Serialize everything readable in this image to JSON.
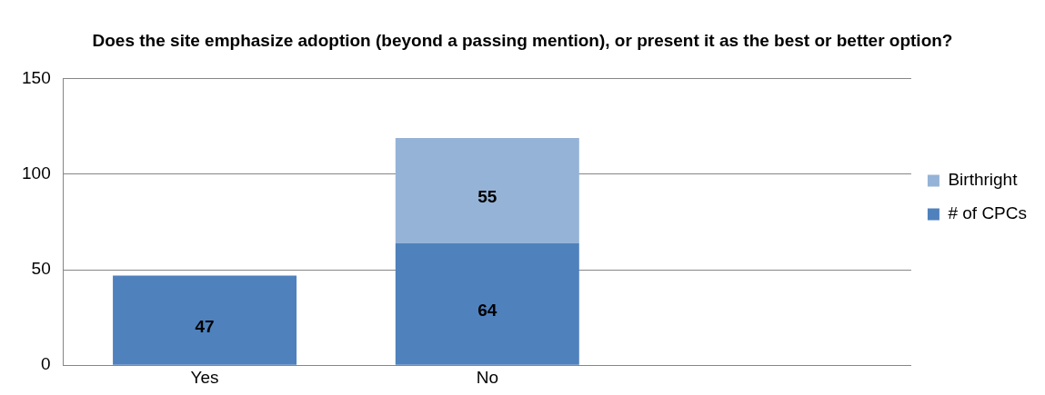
{
  "chart_data": {
    "type": "bar",
    "title": "Does the site emphasize adoption (beyond a passing mention), or present it as the best or better option?",
    "categories": [
      "Yes",
      "No",
      null
    ],
    "series": [
      {
        "name": "# of CPCs",
        "color": "#4f81bd",
        "values": [
          47,
          64,
          null
        ]
      },
      {
        "name": "Birthright",
        "color": "#95b3d7",
        "values": [
          null,
          55,
          null
        ]
      }
    ],
    "stacked": true,
    "ylim": [
      0,
      150
    ],
    "yticks": [
      0,
      50,
      100,
      150
    ],
    "grid": "y",
    "legend": "right",
    "data_labels": true
  }
}
